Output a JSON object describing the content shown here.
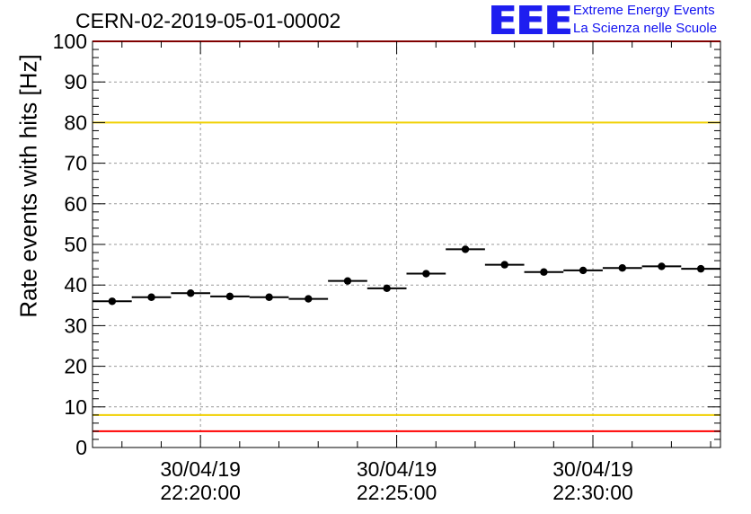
{
  "header": {
    "title": "CERN-02-2019-05-01-00002",
    "logo_letters": "EEE",
    "logo_line1": "Extreme Energy Events",
    "logo_line2": "La Scienza nelle Scuole"
  },
  "colors": {
    "series": "#000000",
    "upper_limit": "#ff0000",
    "warning_limit": "#f0d000",
    "grid": "#999999",
    "logo": "#1e1ef0"
  },
  "chart_data": {
    "type": "scatter",
    "title": "CERN-02-2019-05-01-00002",
    "xlabel": "",
    "ylabel": "Rate events with hits [Hz]",
    "ylim": [
      0,
      100
    ],
    "xlim": [
      "30/04/19 22:17:15",
      "30/04/19 22:33:15"
    ],
    "yticks": [
      0,
      10,
      20,
      30,
      40,
      50,
      60,
      70,
      80,
      90,
      100
    ],
    "xticks": [
      {
        "t": "30/04/19 22:20:00",
        "date": "30/04/19",
        "time": "22:20:00"
      },
      {
        "t": "30/04/19 22:25:00",
        "date": "30/04/19",
        "time": "22:25:00"
      },
      {
        "t": "30/04/19 22:30:00",
        "date": "30/04/19",
        "time": "22:30:00"
      }
    ],
    "grid": true,
    "series": [
      {
        "points": [
          {
            "x": "30/04/19 22:17:45",
            "y": 36.0,
            "x_err_min": 0.5
          },
          {
            "x": "30/04/19 22:18:45",
            "y": 37.0,
            "x_err_min": 0.5
          },
          {
            "x": "30/04/19 22:19:45",
            "y": 38.0,
            "x_err_min": 0.5
          },
          {
            "x": "30/04/19 22:20:45",
            "y": 37.2,
            "x_err_min": 0.5
          },
          {
            "x": "30/04/19 22:21:45",
            "y": 37.0,
            "x_err_min": 0.5
          },
          {
            "x": "30/04/19 22:22:45",
            "y": 36.6,
            "x_err_min": 0.5
          },
          {
            "x": "30/04/19 22:23:45",
            "y": 41.0,
            "x_err_min": 0.5
          },
          {
            "x": "30/04/19 22:24:45",
            "y": 39.2,
            "x_err_min": 0.5
          },
          {
            "x": "30/04/19 22:25:45",
            "y": 42.8,
            "x_err_min": 0.5
          },
          {
            "x": "30/04/19 22:26:45",
            "y": 48.8,
            "x_err_min": 0.5
          },
          {
            "x": "30/04/19 22:27:45",
            "y": 45.0,
            "x_err_min": 0.5
          },
          {
            "x": "30/04/19 22:28:45",
            "y": 43.2,
            "x_err_min": 0.5
          },
          {
            "x": "30/04/19 22:29:45",
            "y": 43.6,
            "x_err_min": 0.5
          },
          {
            "x": "30/04/19 22:30:45",
            "y": 44.2,
            "x_err_min": 0.5
          },
          {
            "x": "30/04/19 22:31:45",
            "y": 44.6,
            "x_err_min": 0.5
          },
          {
            "x": "30/04/19 22:32:45",
            "y": 44.0,
            "x_err_min": 0.5
          }
        ]
      }
    ],
    "reference_lines": [
      {
        "y": 100,
        "color": "#ff0000"
      },
      {
        "y": 80,
        "color": "#f0d000"
      },
      {
        "y": 8,
        "color": "#f0d000"
      },
      {
        "y": 4,
        "color": "#ff0000"
      }
    ]
  }
}
